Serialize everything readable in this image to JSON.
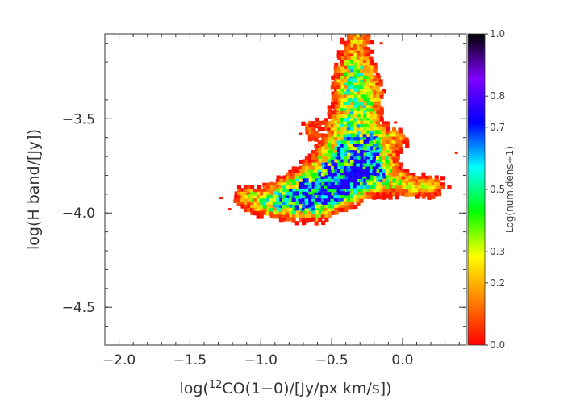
{
  "chart_data": {
    "type": "heatmap",
    "title": "",
    "xlabel_parts": {
      "pre": "log(",
      "sup": "12",
      "post": "CO(1−0)/[Jy/px km/s])"
    },
    "ylabel": "log(H band/[Jy])",
    "xlim": [
      -2.1,
      0.45
    ],
    "ylim": [
      -4.7,
      -3.05
    ],
    "xticks": [
      -2.0,
      -1.5,
      -1.0,
      -0.5,
      0.0
    ],
    "xtick_labels": [
      "−2.0",
      "−1.5",
      "−1.0",
      "−0.5",
      "0.0"
    ],
    "yticks": [
      -4.5,
      -4.0,
      -3.5
    ],
    "ytick_labels": [
      "−4.5",
      "−4.0",
      "−3.5"
    ],
    "grid": false,
    "colorbar": {
      "title": "Log(num.dens+1)",
      "ticks": [
        0.0,
        0.2,
        0.3,
        0.5,
        0.7,
        0.8,
        1.0
      ],
      "tick_labels": [
        "0.0",
        "0.2",
        "0.3",
        "0.5",
        "0.7",
        "0.8",
        "1.0"
      ],
      "range": [
        0.0,
        1.0
      ],
      "colormap": [
        "#ff0000",
        "#ff8000",
        "#ffff00",
        "#00ff00",
        "#00ffff",
        "#0000ff",
        "#8000ff",
        "#000000"
      ]
    },
    "density_regions": [
      {
        "x": -0.32,
        "y": -3.07,
        "dx": 0.07,
        "dy": 0.05,
        "w": 0.5
      },
      {
        "x": -0.35,
        "y": -3.22,
        "dx": 0.08,
        "dy": 0.07,
        "w": 0.55
      },
      {
        "x": -0.28,
        "y": -3.25,
        "dx": 0.06,
        "dy": 0.05,
        "w": 0.45
      },
      {
        "x": -0.38,
        "y": -3.32,
        "dx": 0.07,
        "dy": 0.06,
        "w": 0.55
      },
      {
        "x": -0.35,
        "y": -3.42,
        "dx": 0.1,
        "dy": 0.06,
        "w": 0.65
      },
      {
        "x": -0.25,
        "y": -3.47,
        "dx": 0.07,
        "dy": 0.05,
        "w": 0.5
      },
      {
        "x": -0.42,
        "y": -3.52,
        "dx": 0.08,
        "dy": 0.05,
        "w": 0.55
      },
      {
        "x": -0.3,
        "y": -3.58,
        "dx": 0.1,
        "dy": 0.05,
        "w": 0.6
      },
      {
        "x": -0.22,
        "y": -3.62,
        "dx": 0.08,
        "dy": 0.05,
        "w": 0.55
      },
      {
        "x": -0.45,
        "y": -3.64,
        "dx": 0.09,
        "dy": 0.05,
        "w": 0.55
      },
      {
        "x": -0.33,
        "y": -3.7,
        "dx": 0.13,
        "dy": 0.06,
        "w": 0.75
      },
      {
        "x": -0.18,
        "y": -3.72,
        "dx": 0.09,
        "dy": 0.05,
        "w": 0.65
      },
      {
        "x": -0.55,
        "y": -3.75,
        "dx": 0.1,
        "dy": 0.05,
        "w": 0.6
      },
      {
        "x": -0.4,
        "y": -3.8,
        "dx": 0.12,
        "dy": 0.05,
        "w": 0.95
      },
      {
        "x": -0.25,
        "y": -3.8,
        "dx": 0.1,
        "dy": 0.05,
        "w": 0.7
      },
      {
        "x": -0.1,
        "y": -3.83,
        "dx": 0.08,
        "dy": 0.05,
        "w": 0.55
      },
      {
        "x": -0.7,
        "y": -3.85,
        "dx": 0.12,
        "dy": 0.05,
        "w": 0.7
      },
      {
        "x": -0.55,
        "y": -3.87,
        "dx": 0.12,
        "dy": 0.05,
        "w": 0.8
      },
      {
        "x": -0.33,
        "y": -3.87,
        "dx": 0.09,
        "dy": 0.04,
        "w": 0.6
      },
      {
        "x": 0.05,
        "y": -3.85,
        "dx": 0.08,
        "dy": 0.04,
        "w": 0.5
      },
      {
        "x": 0.2,
        "y": -3.86,
        "dx": 0.08,
        "dy": 0.04,
        "w": 0.55
      },
      {
        "x": -0.85,
        "y": -3.92,
        "dx": 0.1,
        "dy": 0.05,
        "w": 0.7
      },
      {
        "x": -0.62,
        "y": -3.93,
        "dx": 0.12,
        "dy": 0.045,
        "w": 0.75
      },
      {
        "x": -0.45,
        "y": -3.92,
        "dx": 0.08,
        "dy": 0.04,
        "w": 0.5
      },
      {
        "x": -1.0,
        "y": -3.95,
        "dx": 0.1,
        "dy": 0.04,
        "w": 0.55
      },
      {
        "x": -0.78,
        "y": -3.98,
        "dx": 0.1,
        "dy": 0.04,
        "w": 0.55
      },
      {
        "x": -1.1,
        "y": -3.9,
        "dx": 0.07,
        "dy": 0.03,
        "w": 0.45
      },
      {
        "x": -0.6,
        "y": -4.0,
        "dx": 0.08,
        "dy": 0.035,
        "w": 0.45
      },
      {
        "x": -0.05,
        "y": -3.6,
        "dx": 0.07,
        "dy": 0.04,
        "w": 0.45
      },
      {
        "x": -0.65,
        "y": -3.55,
        "dx": 0.05,
        "dy": 0.04,
        "w": 0.4
      },
      {
        "x": -0.2,
        "y": -3.35,
        "dx": 0.05,
        "dy": 0.05,
        "w": 0.4
      }
    ],
    "peaks": [
      {
        "x": -0.38,
        "y": -3.77,
        "value": 0.65
      },
      {
        "x": -0.6,
        "y": -3.84,
        "value": 0.6
      },
      {
        "x": -0.32,
        "y": -3.42,
        "value": 0.52
      },
      {
        "x": -0.82,
        "y": -3.93,
        "value": 0.55
      },
      {
        "x": -0.24,
        "y": -3.69,
        "value": 0.55
      }
    ]
  }
}
